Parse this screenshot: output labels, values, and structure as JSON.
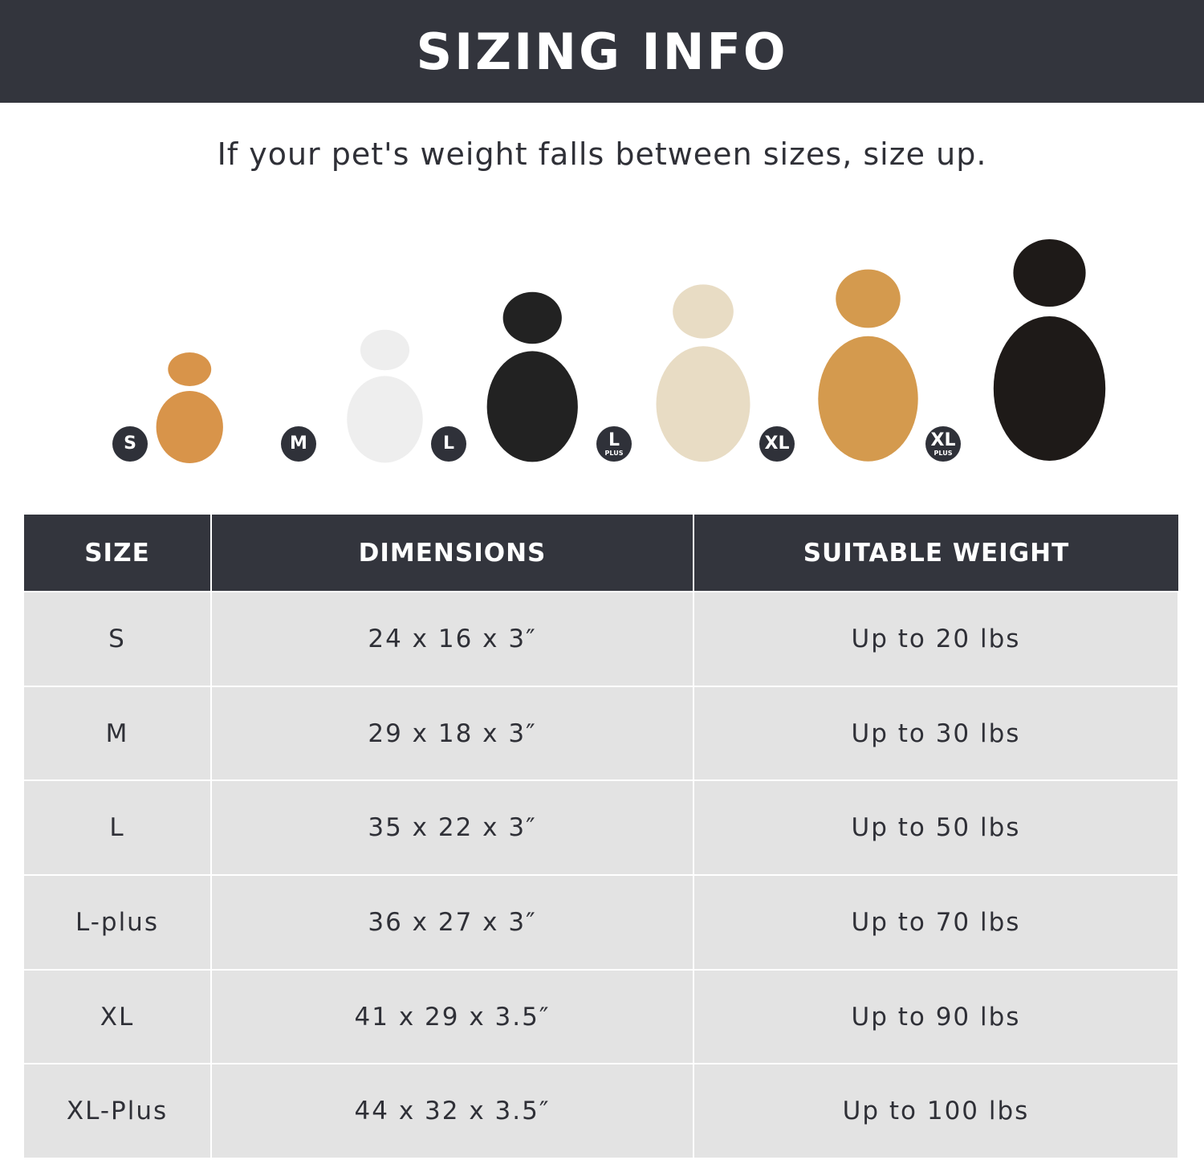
{
  "header": {
    "title": "SIZING INFO"
  },
  "subtitle": "If your pet's weight falls between sizes, size up.",
  "dogs": [
    {
      "badge": "S",
      "badge_sub": "",
      "color": "#d8944a"
    },
    {
      "badge": "M",
      "badge_sub": "",
      "color": "#eeeeee"
    },
    {
      "badge": "L",
      "badge_sub": "",
      "color": "#222222"
    },
    {
      "badge": "L",
      "badge_sub": "PLUS",
      "color": "#e8dcc4"
    },
    {
      "badge": "XL",
      "badge_sub": "",
      "color": "#d49a4e"
    },
    {
      "badge": "XL",
      "badge_sub": "PLUS",
      "color": "#1e1a18"
    }
  ],
  "table": {
    "headers": [
      "SIZE",
      "DIMENSIONS",
      "SUITABLE WEIGHT"
    ],
    "rows": [
      [
        "S",
        "24 x 16 x 3″",
        "Up to 20 lbs"
      ],
      [
        "M",
        "29 x 18 x 3″",
        "Up to 30 lbs"
      ],
      [
        "L",
        "35 x 22 x 3″",
        "Up to 50 lbs"
      ],
      [
        "L-plus",
        "36 x 27 x 3″",
        "Up to 70 lbs"
      ],
      [
        "XL",
        "41 x 29 x 3.5″",
        "Up to 90 lbs"
      ],
      [
        "XL-Plus",
        "44 x 32 x 3.5″",
        "Up to 100 lbs"
      ]
    ]
  }
}
